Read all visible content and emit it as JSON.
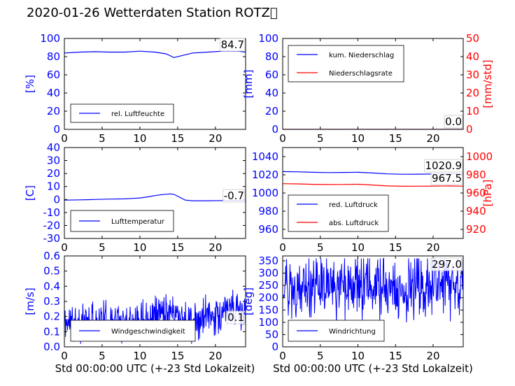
{
  "title": "2020-01-26 Wetterdaten Station ROTZ\u0000",
  "colors": {
    "primary": "#0000ff",
    "secondary": "#ff0000",
    "axis": "#000000"
  },
  "chart_data": [
    {
      "id": "humidity",
      "type": "line",
      "xlim": [
        0,
        24
      ],
      "x_ticks": [
        0,
        5,
        10,
        15,
        20
      ],
      "left_axis": {
        "label": "[%]",
        "ylim": [
          0,
          100
        ],
        "ticks": [
          0,
          20,
          40,
          60,
          80,
          100
        ],
        "color": "#0000ff"
      },
      "series": [
        {
          "name": "rel. Luftfeuchte",
          "color": "#0000ff",
          "axis": "left",
          "x": [
            0,
            2,
            4,
            6,
            8,
            10,
            12,
            13.5,
            14.5,
            15.5,
            17,
            19,
            21,
            23,
            24
          ],
          "y": [
            84,
            85,
            85.5,
            85,
            85,
            86,
            85,
            83,
            79,
            81,
            84,
            85,
            86,
            86,
            85
          ]
        }
      ],
      "last_values": [
        "84.7"
      ],
      "legend_position": "lower-left"
    },
    {
      "id": "precipitation",
      "type": "line",
      "xlim": [
        0,
        24
      ],
      "x_ticks": [
        0,
        5,
        10,
        15,
        20
      ],
      "left_axis": {
        "label": "[mm]",
        "ylim": [
          0,
          100
        ],
        "ticks": [
          0,
          20,
          40,
          60,
          80,
          100
        ],
        "color": "#0000ff"
      },
      "right_axis": {
        "label": "[mm/std]",
        "ylim": [
          0,
          50
        ],
        "ticks": [
          0,
          10,
          20,
          30,
          40,
          50
        ],
        "color": "#ff0000"
      },
      "series": [
        {
          "name": "kum. Niederschlag",
          "color": "#0000ff",
          "axis": "left",
          "x": [
            0,
            24
          ],
          "y": [
            0,
            0
          ]
        },
        {
          "name": "Niederschlagsrate",
          "color": "#ff0000",
          "axis": "right",
          "x": [
            0,
            24
          ],
          "y": [
            0,
            0
          ]
        }
      ],
      "last_values": [
        "0.0",
        "0.0"
      ],
      "legend_position": "upper-left"
    },
    {
      "id": "temperature",
      "type": "line",
      "xlim": [
        0,
        24
      ],
      "x_ticks": [
        0,
        5,
        10,
        15,
        20
      ],
      "left_axis": {
        "label": "[C]",
        "ylim": [
          -30,
          40
        ],
        "ticks": [
          -30,
          -20,
          -10,
          0,
          10,
          20,
          30,
          40
        ],
        "color": "#0000ff"
      },
      "series": [
        {
          "name": "Lufttemperatur",
          "color": "#0000ff",
          "axis": "left",
          "x": [
            0,
            2,
            4,
            6,
            8,
            9,
            10,
            11,
            12,
            13,
            14,
            14.5,
            15,
            15.5,
            16,
            17,
            19,
            21,
            23,
            24
          ],
          "y": [
            -0.5,
            -0.3,
            0,
            0.3,
            0.5,
            0.8,
            1.2,
            2,
            3,
            3.8,
            4.3,
            4,
            2.5,
            1,
            -0.5,
            -1,
            -1,
            -0.8,
            -0.7,
            -0.7
          ]
        }
      ],
      "last_values": [
        "-0.7"
      ],
      "legend_position": "lower-left"
    },
    {
      "id": "pressure",
      "type": "line",
      "xlim": [
        0,
        24
      ],
      "x_ticks": [
        0,
        5,
        10,
        15,
        20
      ],
      "left_axis": {
        "label": "",
        "ylim": [
          950,
          1050
        ],
        "ticks": [
          960,
          980,
          1000,
          1020,
          1040
        ],
        "color": "#0000ff"
      },
      "right_axis": {
        "label": "[hPa]",
        "ylim": [
          910,
          1010
        ],
        "ticks": [
          920,
          940,
          960,
          980,
          1000
        ],
        "color": "#ff0000"
      },
      "series": [
        {
          "name": "red. Luftdruck",
          "color": "#0000ff",
          "axis": "left",
          "x": [
            0,
            2,
            4,
            6,
            8,
            10,
            12,
            14,
            16,
            18,
            20,
            22,
            24
          ],
          "y": [
            1023.5,
            1023.3,
            1022.8,
            1022.5,
            1022.6,
            1022.8,
            1022,
            1021,
            1020.6,
            1020.7,
            1020.9,
            1021.2,
            1020.9
          ]
        },
        {
          "name": "abs. Luftdruck",
          "color": "#ff0000",
          "axis": "right",
          "x": [
            0,
            2,
            4,
            6,
            8,
            10,
            12,
            14,
            16,
            18,
            20,
            22,
            24
          ],
          "y": [
            970.2,
            970,
            969.5,
            969.3,
            969.4,
            969.6,
            968.8,
            967.8,
            967.4,
            967.5,
            967.6,
            967.8,
            967.5
          ]
        }
      ],
      "last_values": [
        "1020.9",
        "967.5"
      ],
      "legend_position": "lower-left"
    },
    {
      "id": "windspeed",
      "type": "line",
      "xlim": [
        0,
        24
      ],
      "x_ticks": [
        0,
        5,
        10,
        15,
        20
      ],
      "left_axis": {
        "label": "[m/s]",
        "ylim": [
          0,
          0.6
        ],
        "ticks": [
          0.0,
          0.1,
          0.2,
          0.3,
          0.4,
          0.5,
          0.6
        ],
        "color": "#0000ff"
      },
      "series": [
        {
          "name": "Windgeschwindigkeit",
          "color": "#0000ff",
          "axis": "left",
          "noisy": true,
          "seed": 11,
          "samples": 480,
          "base_x": [
            0,
            4,
            8,
            10,
            12,
            13,
            14,
            15,
            16,
            17,
            19,
            21,
            23,
            24
          ],
          "base_y": [
            0.16,
            0.16,
            0.18,
            0.2,
            0.22,
            0.24,
            0.25,
            0.22,
            0.18,
            0.15,
            0.2,
            0.22,
            0.24,
            0.2
          ],
          "amplitude": 0.12,
          "ymin": 0.02,
          "ymax": 0.58
        }
      ],
      "last_values": [
        "0.1"
      ],
      "legend_position": "lower-center"
    },
    {
      "id": "winddirection",
      "type": "line",
      "xlim": [
        0,
        24
      ],
      "x_ticks": [
        0,
        5,
        10,
        15,
        20
      ],
      "left_axis": {
        "label": "[deg]",
        "ylim": [
          0,
          370
        ],
        "ticks": [
          0,
          50,
          100,
          150,
          200,
          250,
          300,
          350
        ],
        "color": "#0000ff"
      },
      "series": [
        {
          "name": "Windrichtung",
          "color": "#0000ff",
          "axis": "left",
          "noisy": true,
          "seed": 29,
          "samples": 420,
          "base_x": [
            0,
            5,
            10,
            15,
            20,
            24
          ],
          "base_y": [
            230,
            240,
            250,
            240,
            250,
            245
          ],
          "amplitude": 120,
          "ymin": 5,
          "ymax": 360
        }
      ],
      "last_values": [
        "297.0"
      ],
      "legend_position": "lower-left"
    }
  ],
  "x_axis_label": "Std 00:00:00 UTC (+-23 Std Lokalzeit)"
}
